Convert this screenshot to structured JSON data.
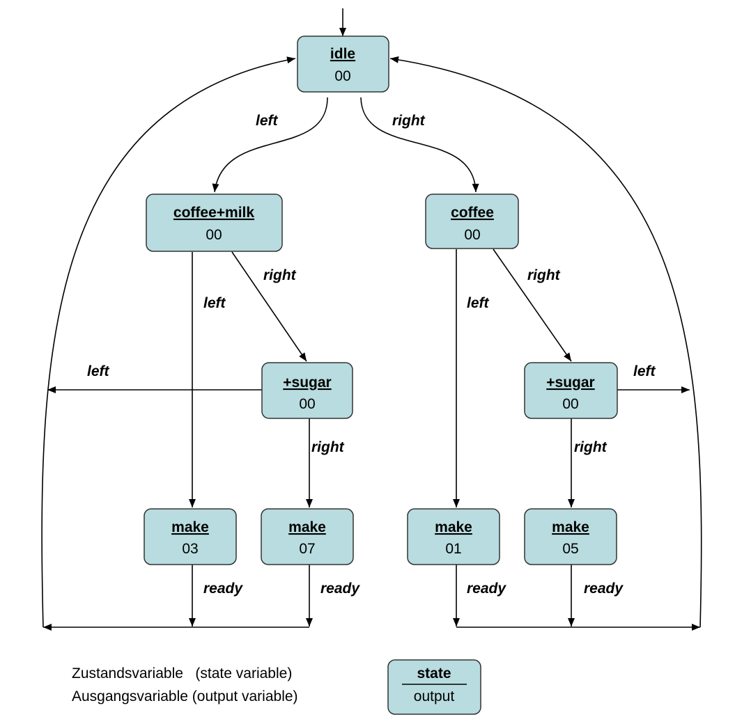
{
  "nodes": {
    "idle": {
      "state": "idle",
      "output": "00"
    },
    "coffee_milk": {
      "state": "coffee+milk",
      "output": "00"
    },
    "coffee": {
      "state": "coffee",
      "output": "00"
    },
    "sugar_left": {
      "state": "+sugar",
      "output": "00"
    },
    "sugar_right": {
      "state": "+sugar",
      "output": "00"
    },
    "make_03": {
      "state": "make",
      "output": "03"
    },
    "make_07": {
      "state": "make",
      "output": "07"
    },
    "make_01": {
      "state": "make",
      "output": "01"
    },
    "make_05": {
      "state": "make",
      "output": "05"
    }
  },
  "edge_labels": {
    "idle_to_coffee_milk": "left",
    "idle_to_coffee": "right",
    "coffee_milk_to_make_03": "left",
    "coffee_milk_to_sugar": "right",
    "sugar_left_back": "left",
    "sugar_left_to_make_07": "right",
    "coffee_to_make_01": "left",
    "coffee_to_sugar": "right",
    "sugar_right_back": "left",
    "sugar_right_to_make_05": "right",
    "make_03_ready": "ready",
    "make_07_ready": "ready",
    "make_01_ready": "ready",
    "make_05_ready": "ready"
  },
  "legend": {
    "state_variable_text": "Zustandsvariable   (state variable)",
    "output_variable_text": "Ausgangsvariable (output variable)",
    "box_state": "state",
    "box_output": "output"
  }
}
